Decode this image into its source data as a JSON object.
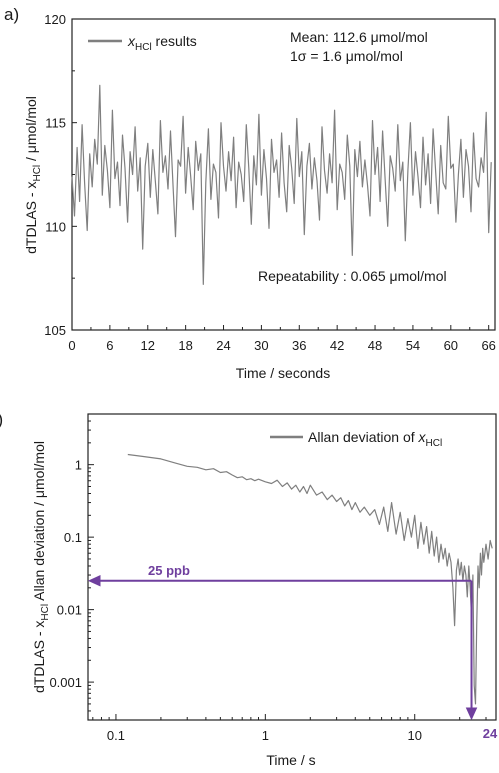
{
  "chart_data": [
    {
      "type": "line",
      "panel_label": "a)",
      "xlabel": "Time / seconds",
      "ylabel_prefix": "dTDLAS - x",
      "ylabel_sub": "HCl",
      "ylabel_suffix": " / μmol/mol",
      "xlim": [
        0,
        67
      ],
      "ylim": [
        105,
        120
      ],
      "xticks": [
        "0",
        "6",
        "12",
        "18",
        "24",
        "30",
        "36",
        "42",
        "48",
        "54",
        "60",
        "66"
      ],
      "yticks": [
        "105",
        "110",
        "115",
        "120"
      ],
      "legend": {
        "position": "top-left",
        "symbol": "x",
        "sub": "HCl",
        "text": " results"
      },
      "annotations": {
        "mean": "Mean: 112.6 μmol/mol",
        "sigma": "1σ = 1.6 μmol/mol",
        "repeatability": "Repeatability : 0.065 μmol/mol"
      },
      "series": [
        {
          "name": "xHCl results",
          "x_start": 0,
          "x_step": 0.4,
          "y": [
            112.4,
            110.5,
            113.8,
            111.2,
            114.9,
            112.1,
            109.8,
            113.5,
            111.9,
            114.2,
            113.0,
            116.8,
            111.5,
            113.9,
            112.7,
            110.9,
            115.6,
            112.3,
            113.1,
            111.0,
            114.4,
            112.8,
            110.2,
            113.6,
            112.5,
            114.8,
            111.7,
            113.3,
            108.9,
            112.9,
            114.0,
            111.4,
            113.7,
            112.2,
            110.6,
            115.1,
            112.6,
            113.4,
            111.8,
            114.6,
            112.0,
            109.5,
            113.2,
            112.9,
            115.3,
            111.6,
            113.8,
            112.4,
            110.8,
            114.1,
            112.7,
            113.5,
            107.2,
            112.1,
            114.7,
            111.3,
            113.0,
            112.6,
            110.4,
            115.0,
            112.9,
            111.7,
            113.6,
            112.2,
            114.3,
            110.9,
            113.1,
            112.5,
            111.2,
            114.9,
            112.8,
            110.1,
            113.4,
            112.0,
            115.4,
            111.5,
            113.7,
            112.3,
            109.9,
            114.2,
            112.6,
            113.2,
            111.4,
            114.5,
            112.1,
            110.7,
            113.9,
            112.8,
            111.1,
            115.2,
            112.4,
            113.6,
            109.6,
            112.9,
            114.0,
            111.8,
            113.3,
            112.2,
            110.3,
            114.8,
            112.7,
            111.6,
            113.5,
            112.1,
            115.6,
            110.8,
            113.0,
            112.6,
            111.3,
            114.4,
            112.9,
            108.6,
            113.7,
            112.4,
            114.1,
            111.9,
            113.2,
            112.0,
            110.5,
            115.1,
            112.5,
            113.8,
            111.2,
            114.6,
            112.3,
            110.0,
            113.4,
            112.8,
            111.7,
            114.9,
            112.2,
            113.1,
            109.3,
            112.7,
            115.0,
            111.5,
            113.6,
            112.4,
            110.9,
            114.3,
            112.0,
            113.5,
            111.1,
            114.7,
            112.6,
            110.6,
            113.9,
            112.1,
            111.8,
            115.3,
            112.8,
            113.0,
            110.2,
            112.5,
            114.2,
            111.4,
            113.7,
            112.9,
            110.7,
            114.5,
            112.3,
            111.9,
            113.3,
            112.6,
            115.5,
            109.7,
            113.1
          ]
        }
      ]
    },
    {
      "type": "line",
      "panel_label": "b)",
      "xlabel": "Time / s",
      "ylabel_prefix": "dTDLAS - x",
      "ylabel_sub": "HCl",
      "ylabel_suffix": " Allan deviation / μmol/mol",
      "xscale": "log",
      "yscale": "log",
      "xlim": [
        0.065,
        35
      ],
      "ylim": [
        0.0003,
        5
      ],
      "xticks": [
        {
          "v": 0.1,
          "t": "0.1"
        },
        {
          "v": 1,
          "t": "1"
        },
        {
          "v": 10,
          "t": "10"
        }
      ],
      "yticks": [
        {
          "v": 0.001,
          "t": "0.001"
        },
        {
          "v": 0.01,
          "t": "0.01"
        },
        {
          "v": 0.1,
          "t": "0.1"
        },
        {
          "v": 1,
          "t": "1"
        }
      ],
      "legend": {
        "position": "top-right",
        "text": "Allan deviation of ",
        "symbol": "x",
        "sub": "HCl"
      },
      "annotations": {
        "level_label": "25 ppb",
        "time_label": "24",
        "level_value": 0.025,
        "time_value": 24
      },
      "series": [
        {
          "name": "Allan deviation of xHCl",
          "x": [
            0.12,
            0.15,
            0.2,
            0.25,
            0.3,
            0.35,
            0.4,
            0.45,
            0.5,
            0.55,
            0.6,
            0.65,
            0.7,
            0.75,
            0.8,
            0.85,
            0.9,
            1.0,
            1.1,
            1.2,
            1.3,
            1.4,
            1.5,
            1.6,
            1.7,
            1.8,
            1.9,
            2.0,
            2.2,
            2.4,
            2.6,
            2.8,
            3.0,
            3.2,
            3.4,
            3.6,
            3.8,
            4.0,
            4.3,
            4.6,
            5.0,
            5.4,
            5.8,
            6.2,
            6.6,
            7.0,
            7.5,
            8.0,
            8.5,
            9.0,
            9.5,
            10,
            10.5,
            11,
            11.5,
            12,
            12.5,
            13,
            13.5,
            14,
            14.5,
            15,
            15.5,
            16,
            16.5,
            17,
            17.5,
            18,
            18.5,
            19,
            19.5,
            20,
            20.5,
            21,
            21.5,
            22,
            22.5,
            23,
            23.5,
            24,
            24.5,
            25,
            25.5,
            26,
            26.5,
            27,
            27.5,
            28,
            28.5,
            29,
            29.5,
            30,
            31,
            32,
            33
          ],
          "y": [
            1.38,
            1.3,
            1.2,
            1.05,
            0.95,
            0.92,
            0.85,
            0.88,
            0.78,
            0.8,
            0.72,
            0.66,
            0.68,
            0.62,
            0.64,
            0.6,
            0.63,
            0.58,
            0.55,
            0.61,
            0.5,
            0.56,
            0.46,
            0.52,
            0.42,
            0.5,
            0.4,
            0.52,
            0.38,
            0.42,
            0.33,
            0.38,
            0.31,
            0.35,
            0.27,
            0.32,
            0.24,
            0.3,
            0.22,
            0.26,
            0.2,
            0.24,
            0.15,
            0.26,
            0.12,
            0.3,
            0.11,
            0.22,
            0.09,
            0.18,
            0.1,
            0.2,
            0.07,
            0.16,
            0.08,
            0.14,
            0.06,
            0.12,
            0.055,
            0.1,
            0.045,
            0.08,
            0.05,
            0.07,
            0.04,
            0.06,
            0.045,
            0.02,
            0.006,
            0.035,
            0.05,
            0.03,
            0.045,
            0.025,
            0.04,
            0.03,
            0.015,
            0.04,
            0.02,
            0.008,
            0.03,
            0.0009,
            0.0005,
            0.006,
            0.04,
            0.02,
            0.06,
            0.03,
            0.07,
            0.045,
            0.06,
            0.08,
            0.05,
            0.09,
            0.07
          ]
        }
      ]
    }
  ]
}
